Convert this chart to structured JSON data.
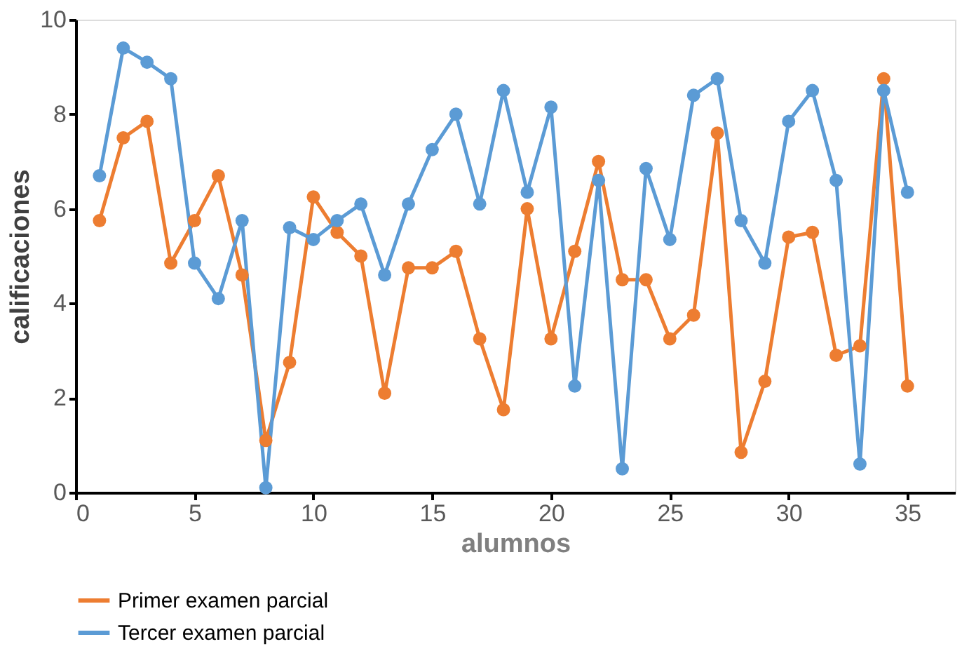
{
  "chart_data": {
    "type": "line",
    "xlabel": "alumnos",
    "ylabel": "calificaciones",
    "x": [
      1,
      2,
      3,
      4,
      5,
      6,
      7,
      8,
      9,
      10,
      11,
      12,
      13,
      14,
      15,
      16,
      17,
      18,
      19,
      20,
      21,
      22,
      23,
      24,
      25,
      26,
      27,
      28,
      29,
      30,
      31,
      32,
      33,
      34,
      35
    ],
    "series": [
      {
        "name": "Primer examen parcial",
        "color": "#ed7d31",
        "values": [
          5.75,
          7.5,
          7.85,
          4.85,
          5.75,
          6.7,
          4.6,
          1.1,
          2.75,
          6.25,
          5.5,
          5.0,
          2.1,
          4.75,
          4.75,
          5.1,
          3.25,
          1.75,
          6.0,
          3.25,
          5.1,
          7.0,
          4.5,
          4.5,
          3.25,
          3.75,
          7.6,
          0.85,
          2.35,
          5.4,
          5.5,
          2.9,
          3.1,
          8.75,
          2.25
        ]
      },
      {
        "name": "Tercer examen parcial",
        "color": "#5b9bd5",
        "values": [
          6.7,
          9.4,
          9.1,
          8.75,
          4.85,
          4.1,
          5.75,
          0.1,
          5.6,
          5.35,
          5.75,
          6.1,
          4.6,
          6.1,
          7.25,
          8.0,
          6.1,
          8.5,
          6.35,
          8.15,
          2.25,
          6.6,
          0.5,
          6.85,
          5.35,
          8.4,
          8.75,
          5.75,
          4.85,
          7.85,
          8.5,
          6.6,
          0.6,
          8.5,
          6.35
        ]
      }
    ],
    "xlim": [
      0,
      37
    ],
    "xticks": [
      0,
      5,
      10,
      15,
      20,
      25,
      30,
      35
    ],
    "ylim": [
      0,
      10
    ],
    "yticks": [
      0,
      2,
      4,
      6,
      8,
      10
    ],
    "grid": false,
    "legend": "bottom",
    "marker": "circle",
    "line_style": "solid"
  }
}
